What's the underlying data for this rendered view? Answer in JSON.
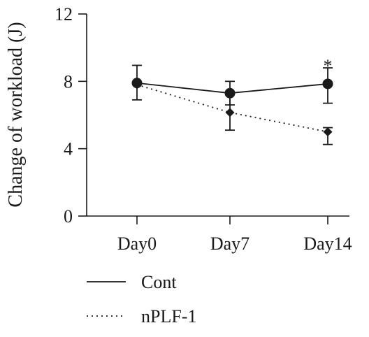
{
  "chart_data": {
    "type": "line",
    "ylabel": "Change of workload (J)",
    "xlabel": "",
    "ylim": [
      0,
      12
    ],
    "yticks": [
      0,
      4,
      8,
      12
    ],
    "categories": [
      "Day0",
      "Day7",
      "Day14"
    ],
    "grid": false,
    "legend_position": "bottom-left",
    "series": [
      {
        "name": "Cont",
        "line_style": "solid",
        "marker": "circle",
        "values": [
          7.9,
          7.3,
          7.85
        ],
        "err_low": [
          6.9,
          6.6,
          6.7
        ],
        "err_high": [
          8.95,
          8.0,
          8.8
        ]
      },
      {
        "name": "nPLF-1",
        "line_style": "dotted",
        "marker": "diamond",
        "values": [
          7.8,
          6.15,
          5.0
        ],
        "err_low": [
          7.8,
          5.1,
          4.25
        ],
        "err_high": [
          7.8,
          7.2,
          5.25
        ]
      }
    ],
    "annotations": [
      {
        "text": "*",
        "category": "Day14",
        "y": 9.05
      }
    ],
    "colors": {
      "line": "#1a1a1a"
    }
  }
}
